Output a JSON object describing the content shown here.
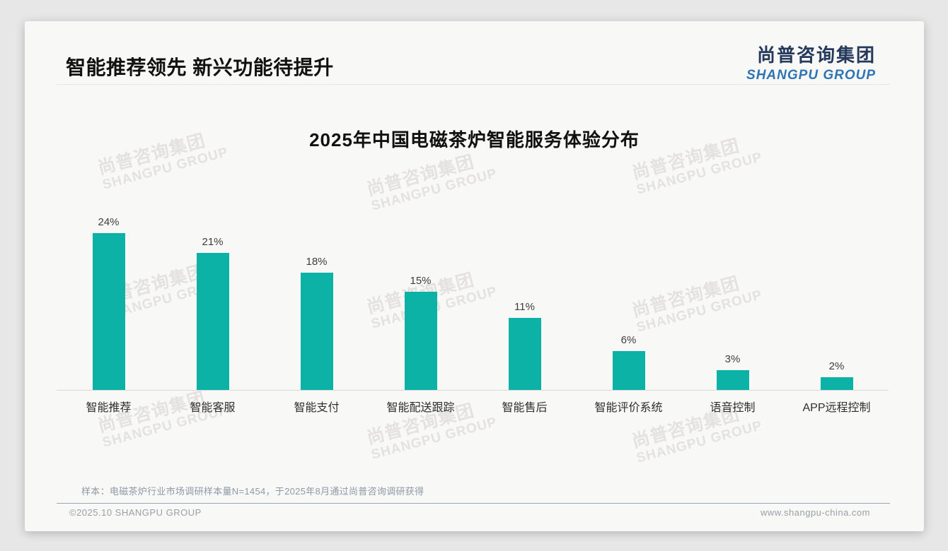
{
  "header": {
    "title": "智能推荐领先 新兴功能待提升",
    "logo": {
      "cn": "尚普咨询集团",
      "en": "SHANGPU GROUP",
      "cn_color": "#24395B",
      "en_color": "#2E74B5"
    }
  },
  "watermark": {
    "cn": "尚普咨询集团",
    "en": "SHANGPU GROUP"
  },
  "chart_data": {
    "type": "bar",
    "title": "2025年中国电磁茶炉智能服务体验分布",
    "categories": [
      "智能推荐",
      "智能客服",
      "智能支付",
      "智能配送跟踪",
      "智能售后",
      "智能评价系统",
      "语音控制",
      "APP远程控制"
    ],
    "values": [
      24,
      21,
      18,
      15,
      11,
      6,
      3,
      2
    ],
    "unit": "%",
    "bar_color": "#0DB2A6",
    "value_labels_shown": true,
    "y_axis_visible": false,
    "grid": false,
    "legend": false,
    "ylim": [
      0,
      26
    ]
  },
  "footnote": "样本：电磁茶炉行业市场调研样本量N=1454，于2025年8月通过尚普咨询调研获得",
  "footer": {
    "left": "©2025.10 SHANGPU GROUP",
    "right": "www.shangpu-china.com"
  }
}
